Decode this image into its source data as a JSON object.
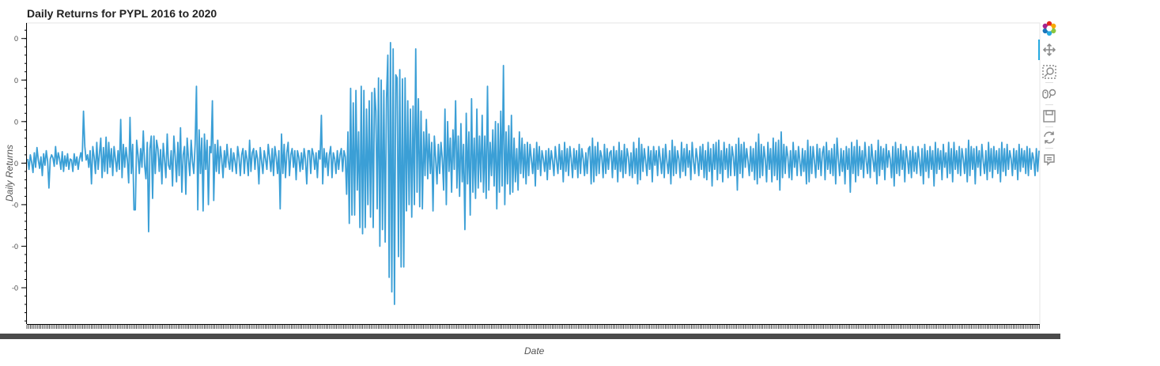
{
  "chart_data": {
    "type": "line",
    "title": "Daily Returns for PYPL 2016 to 2020",
    "xlabel": "Date",
    "ylabel": "Daily Returns",
    "y_tick_labels": [
      "0",
      "0",
      "0",
      "0",
      "-0",
      "-0",
      "-0"
    ],
    "y_tick_values": [
      0.12,
      0.08,
      0.04,
      0.0,
      -0.04,
      -0.08,
      -0.12
    ],
    "ylim": [
      -0.155,
      0.135
    ],
    "x_range": [
      "2016-01",
      "2020-12"
    ],
    "x_ticks": "dense (one per trading day, unlabeled)",
    "color": "#3b9fd6",
    "series": [
      {
        "values": [
          0.004,
          -0.006,
          0.008,
          0.001,
          -0.009,
          0.01,
          -0.004,
          0.015,
          0.003,
          -0.005,
          0.006,
          -0.012,
          0.009,
          -0.002,
          0.012,
          0.002,
          -0.024,
          0.004,
          0.008,
          0.005,
          -0.003,
          0.016,
          -0.001,
          0.01,
          0.004,
          -0.006,
          0.011,
          -0.008,
          0.007,
          -0.003,
          0.009,
          -0.006,
          0.004,
          0.003,
          -0.008,
          0.009,
          -0.002,
          0.006,
          -0.006,
          0.004,
          0.01,
          0.002,
          0.05,
          0.016,
          0.003,
          0.008,
          -0.004,
          0.012,
          -0.02,
          0.016,
          0.006,
          -0.01,
          0.02,
          -0.006,
          0.009,
          0.024,
          -0.014,
          0.015,
          -0.008,
          0.025,
          -0.01,
          0.02,
          -0.004,
          0.014,
          -0.012,
          0.016,
          0.004,
          -0.008,
          0.012,
          -0.006,
          0.042,
          -0.014,
          0.018,
          -0.004,
          0.015,
          0.003,
          -0.019,
          0.044,
          -0.01,
          0.018,
          -0.045,
          -0.045,
          0.022,
          0.008,
          -0.01,
          0.014,
          -0.004,
          0.031,
          -0.002,
          -0.015,
          0.02,
          -0.066,
          0.014,
          0.026,
          -0.034,
          0.026,
          -0.01,
          0.022,
          0.014,
          -0.008,
          0.013,
          -0.02,
          0.019,
          0.003,
          -0.014,
          0.028,
          -0.002,
          -0.006,
          0.012,
          -0.022,
          0.026,
          0.006,
          -0.018,
          0.02,
          -0.012,
          0.034,
          -0.028,
          0.008,
          0.016,
          -0.03,
          0.024,
          0.004,
          -0.012,
          0.022,
          0.002,
          -0.01,
          0.018,
          0.074,
          -0.045,
          0.032,
          -0.01,
          0.024,
          -0.046,
          0.028,
          -0.006,
          0.022,
          -0.04,
          0.016,
          0.01,
          0.06,
          -0.036,
          0.018,
          -0.008,
          0.022,
          -0.01,
          0.016,
          0.004,
          -0.014,
          0.012,
          -0.004,
          0.018,
          0.002,
          -0.006,
          0.014,
          -0.008,
          0.01,
          0.002,
          -0.01,
          0.016,
          0.006,
          -0.012,
          0.008,
          0.014,
          -0.01,
          0.012,
          0.004,
          -0.012,
          0.022,
          -0.008,
          0.01,
          0.014,
          -0.006,
          0.012,
          0.004,
          -0.02,
          0.015,
          0.002,
          -0.01,
          0.012,
          0.004,
          -0.006,
          0.018,
          0.006,
          -0.008,
          0.014,
          -0.012,
          0.016,
          0.006,
          -0.01,
          0.012,
          -0.044,
          0.028,
          -0.01,
          0.018,
          -0.014,
          0.01,
          0.02,
          -0.012,
          0.008,
          0.014,
          -0.004,
          0.012,
          -0.016,
          0.012,
          0.006,
          -0.008,
          0.01,
          -0.006,
          0.014,
          0.004,
          -0.02,
          0.012,
          0.012,
          -0.01,
          0.014,
          0.008,
          -0.006,
          0.01,
          -0.014,
          0.012,
          0.004,
          0.046,
          -0.02,
          0.014,
          -0.004,
          0.01,
          -0.012,
          0.008,
          0.016,
          -0.014,
          0.01,
          0.004,
          -0.01,
          0.012,
          -0.006,
          0.008,
          0.014,
          -0.008,
          0.012,
          0.006,
          -0.03,
          0.03,
          -0.058,
          0.072,
          -0.05,
          0.058,
          -0.05,
          0.07,
          -0.026,
          0.03,
          -0.062,
          0.074,
          -0.068,
          0.07,
          -0.062,
          0.052,
          -0.04,
          0.06,
          -0.052,
          0.068,
          -0.062,
          0.072,
          0.05,
          -0.044,
          0.082,
          -0.08,
          0.08,
          -0.064,
          0.07,
          -0.076,
          0.062,
          0.104,
          -0.11,
          0.116,
          -0.124,
          0.11,
          -0.136,
          0.085,
          0.082,
          -0.09,
          0.09,
          -0.1,
          0.081,
          -0.1,
          0.082,
          -0.046,
          0.06,
          -0.04,
          0.052,
          -0.052,
          0.055,
          -0.04,
          0.11,
          -0.028,
          0.062,
          -0.042,
          0.05,
          -0.044,
          0.03,
          -0.012,
          0.042,
          -0.015,
          0.028,
          -0.01,
          0.02,
          -0.046,
          0.026,
          0.004,
          -0.02,
          0.018,
          -0.01,
          0.02,
          0.004,
          -0.026,
          0.052,
          -0.04,
          0.04,
          -0.008,
          0.024,
          -0.028,
          0.032,
          -0.006,
          0.06,
          -0.024,
          0.026,
          -0.032,
          0.038,
          -0.018,
          0.018,
          -0.064,
          0.048,
          -0.02,
          0.03,
          -0.05,
          0.062,
          -0.028,
          0.024,
          -0.034,
          0.052,
          -0.024,
          0.026,
          -0.018,
          0.046,
          -0.028,
          0.026,
          -0.034,
          0.074,
          -0.026,
          0.02,
          -0.012,
          0.032,
          -0.022,
          0.04,
          -0.044,
          0.038,
          -0.028,
          0.05,
          -0.022,
          0.094,
          -0.04,
          0.03,
          -0.02,
          0.036,
          -0.03,
          0.046,
          -0.028,
          0.024,
          -0.018,
          0.014,
          -0.026,
          0.03,
          -0.01,
          0.024,
          -0.014,
          0.018,
          -0.02,
          0.02,
          -0.012,
          0.018,
          0.004,
          -0.01,
          0.014,
          -0.022,
          0.02,
          -0.006,
          0.016,
          -0.012,
          0.012,
          0.004,
          -0.008,
          0.012,
          -0.016,
          0.014,
          -0.006,
          0.012,
          0.002,
          -0.012,
          0.016,
          0.002,
          -0.01,
          0.018,
          -0.006,
          0.012,
          -0.018,
          0.02,
          -0.008,
          0.014,
          -0.012,
          0.016,
          0.004,
          -0.014,
          0.014,
          -0.006,
          0.012,
          -0.014,
          0.018,
          -0.01,
          0.014,
          0.004,
          -0.012,
          0.01,
          -0.01,
          0.014,
          0.016,
          -0.02,
          0.024,
          -0.018,
          0.016,
          -0.012,
          0.02,
          -0.01,
          0.012,
          0.006,
          -0.014,
          0.018,
          -0.01,
          0.014,
          -0.006,
          0.01,
          0.012,
          -0.014,
          0.016,
          -0.006,
          0.012,
          -0.018,
          0.02,
          -0.008,
          0.012,
          -0.014,
          0.018,
          -0.01,
          0.014,
          0.006,
          -0.012,
          0.01,
          -0.014,
          0.02,
          -0.01,
          0.014,
          -0.02,
          0.024,
          -0.016,
          0.018,
          -0.008,
          0.014,
          0.002,
          -0.012,
          0.016,
          -0.006,
          0.012,
          -0.018,
          0.016,
          -0.002,
          0.012,
          -0.012,
          0.016,
          0.004,
          -0.01,
          0.014,
          -0.014,
          0.018,
          0.002,
          -0.01,
          0.012,
          -0.02,
          0.022,
          -0.012,
          0.016,
          -0.01,
          0.012,
          0.004,
          -0.014,
          0.02,
          -0.008,
          0.014,
          -0.012,
          0.018,
          -0.004,
          0.012,
          -0.016,
          0.02,
          0.002,
          -0.01,
          0.014,
          0.004,
          -0.012,
          0.016,
          -0.006,
          0.018,
          -0.014,
          0.012,
          -0.016,
          0.02,
          -0.008,
          0.014,
          -0.022,
          0.018,
          -0.006,
          0.02,
          -0.016,
          0.022,
          -0.01,
          0.012,
          -0.018,
          0.02,
          -0.006,
          0.014,
          -0.014,
          0.018,
          -0.012,
          0.016,
          0.006,
          -0.012,
          0.018,
          -0.026,
          0.024,
          -0.01,
          0.018,
          -0.014,
          0.02,
          -0.004,
          0.014,
          0.002,
          -0.012,
          0.016,
          -0.008,
          0.014,
          -0.016,
          0.02,
          -0.02,
          0.028,
          -0.014,
          0.018,
          -0.012,
          0.016,
          0.004,
          -0.018,
          0.02,
          -0.006,
          0.014,
          -0.018,
          0.024,
          -0.012,
          0.02,
          -0.016,
          0.022,
          -0.026,
          0.03,
          -0.014,
          0.018,
          -0.01,
          0.016,
          0.006,
          -0.014,
          0.012,
          -0.016,
          0.02,
          -0.004,
          0.012,
          -0.012,
          0.016,
          0.002,
          -0.012,
          0.014,
          -0.008,
          0.012,
          -0.02,
          0.022,
          -0.018,
          0.016,
          -0.01,
          0.016,
          0.002,
          -0.014,
          0.018,
          -0.006,
          0.014,
          -0.012,
          0.01,
          0.016,
          -0.016,
          0.02,
          -0.006,
          0.012,
          -0.01,
          0.014,
          -0.012,
          0.018,
          -0.02,
          0.024,
          0.004,
          -0.012,
          0.014,
          -0.008,
          0.012,
          -0.02,
          0.016,
          -0.006,
          0.014,
          -0.028,
          0.02,
          -0.01,
          0.016,
          -0.018,
          0.022,
          -0.012,
          0.016,
          -0.006,
          0.012,
          -0.014,
          0.02,
          0.002,
          -0.01,
          0.016,
          -0.014,
          0.018,
          0.004,
          -0.008,
          0.012,
          -0.02,
          0.022,
          -0.012,
          0.016,
          -0.006,
          0.014,
          -0.016,
          0.018,
          -0.004,
          0.012,
          0.004,
          -0.014,
          0.016,
          -0.022,
          0.02,
          -0.01,
          0.014,
          -0.012,
          0.018,
          -0.006,
          0.012,
          -0.018,
          0.016,
          0.004,
          -0.01,
          0.012,
          -0.014,
          0.016,
          -0.008,
          0.01,
          -0.01,
          0.016,
          0.002,
          -0.012,
          0.014,
          -0.02,
          0.018,
          -0.008,
          0.012,
          -0.014,
          0.016,
          -0.006,
          0.012,
          -0.022,
          0.02,
          -0.01,
          0.014,
          -0.006,
          0.012,
          -0.016,
          0.018,
          -0.004,
          0.01,
          -0.014,
          0.02,
          -0.01,
          0.014,
          -0.018,
          0.02,
          -0.006,
          0.012,
          -0.01,
          0.016,
          -0.012,
          0.014,
          0.004,
          -0.01,
          0.014,
          -0.018,
          0.022,
          -0.012,
          0.016,
          -0.006,
          0.014,
          -0.02,
          0.016,
          -0.004,
          0.012,
          -0.012,
          0.018,
          0.002,
          -0.01,
          0.012,
          -0.016,
          0.02,
          -0.008,
          0.014,
          -0.014,
          0.016,
          -0.006,
          0.012,
          -0.01,
          0.014,
          -0.018,
          0.02,
          -0.008,
          0.014,
          -0.012,
          0.018,
          -0.006,
          0.012,
          0.004,
          -0.012,
          0.014,
          -0.006,
          0.012,
          -0.016,
          0.018,
          -0.008,
          0.014,
          -0.004,
          0.012,
          -0.01,
          0.016,
          -0.012,
          0.014,
          -0.006,
          0.01,
          0.004,
          -0.012,
          0.014,
          -0.008,
          0.012
        ]
      }
    ],
    "grid": false,
    "legend": "none"
  },
  "toolbar": {
    "tools": [
      {
        "name": "bokeh-logo-icon",
        "label": "Bokeh"
      },
      {
        "name": "pan-icon",
        "label": "Pan"
      },
      {
        "name": "box-zoom-icon",
        "label": "Box Zoom"
      },
      {
        "name": "wheel-zoom-icon",
        "label": "Wheel Zoom"
      },
      {
        "name": "save-icon",
        "label": "Save"
      },
      {
        "name": "reset-icon",
        "label": "Reset"
      },
      {
        "name": "hover-icon",
        "label": "Hover"
      }
    ]
  }
}
